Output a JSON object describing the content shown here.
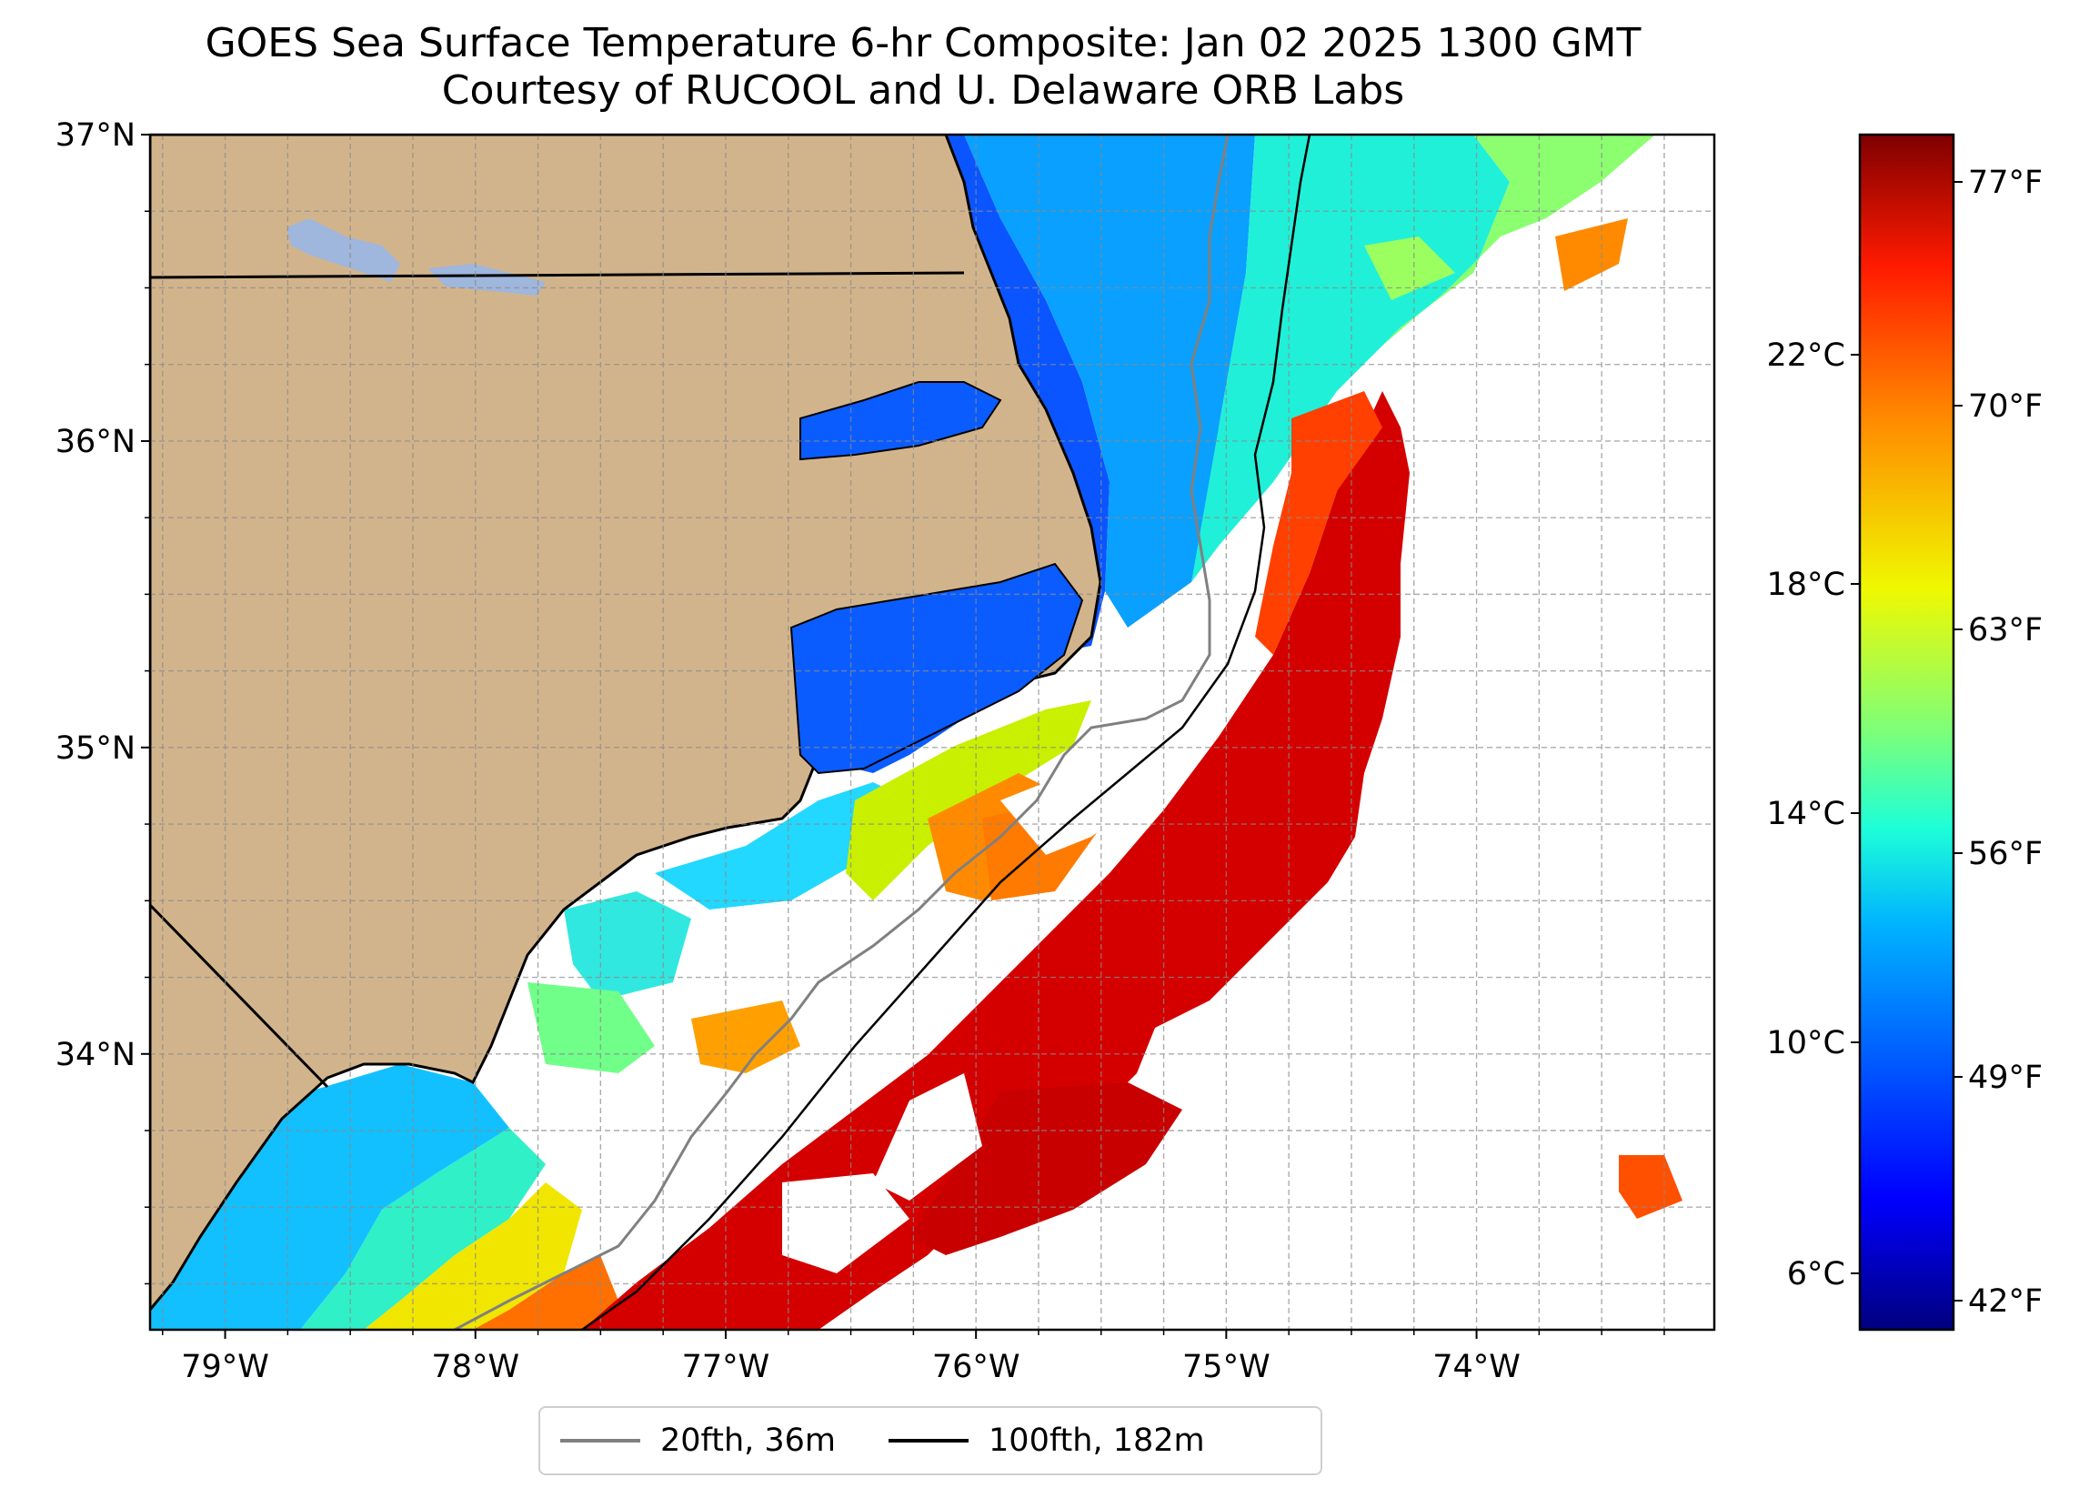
{
  "title": {
    "line1": "GOES Sea Surface Temperature 6-hr Composite: Jan 02 2025 1300 GMT",
    "line2": "Courtesy of RUCOOL and U. Delaware ORB Labs"
  },
  "map": {
    "region": "North Carolina coast / Outer Banks",
    "lat_range": [
      33.1,
      37.0
    ],
    "lon_range": [
      -79.3,
      -73.05
    ],
    "lat_ticks": [
      "37°N",
      "36°N",
      "35°N",
      "34°N"
    ],
    "lon_ticks": [
      "79°W",
      "78°W",
      "77°W",
      "76°W",
      "75°W",
      "74°W"
    ],
    "gridlines": "dashed gray, every 0.25°",
    "colors": {
      "land": "#d2b48c",
      "lakes": "#9fb6dd",
      "no_data": "#ffffff",
      "isobath_20fth": "#808080",
      "isobath_100fth": "#000000"
    }
  },
  "colorbar": {
    "colormap": "jet",
    "celsius_ticks": [
      "22°C",
      "18°C",
      "14°C",
      "10°C",
      "6°C"
    ],
    "fahrenheit_ticks": [
      "77°F",
      "70°F",
      "63°F",
      "56°F",
      "49°F",
      "42°F"
    ]
  },
  "legend": {
    "placement": "bottom-center below map",
    "items": [
      {
        "label": "20fth, 36m",
        "color": "#808080"
      },
      {
        "label": "100fth, 182m",
        "color": "#000000"
      }
    ]
  }
}
